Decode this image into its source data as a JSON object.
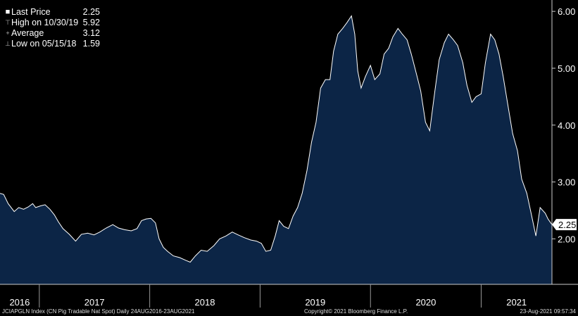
{
  "legend": [
    {
      "icon": "square-icon",
      "label": "Last Price",
      "value": "2.25"
    },
    {
      "icon": "high-marker-icon",
      "label": "High on 10/30/19",
      "value": "5.92"
    },
    {
      "icon": "average-marker-icon",
      "label": "Average",
      "value": "3.12"
    },
    {
      "icon": "low-marker-icon",
      "label": "Low on 05/15/18",
      "value": "1.59"
    }
  ],
  "footer": {
    "left": "JCIAPGLN Index (CN Pig Tradable Nat Spot)  Daily 24AUG2016-23AUG2021",
    "center": "Copyright© 2021 Bloomberg Finance L.P.",
    "right": "23-Aug-2021 09:57:34"
  },
  "colors": {
    "background": "#000000",
    "area_fill": "#0c2546",
    "line": "#ffffff",
    "grid": "#3a3a3a"
  },
  "chart_data": {
    "type": "area",
    "title": "",
    "xlabel": "",
    "ylabel": "",
    "x_range": [
      "2016-08-24",
      "2021-08-23"
    ],
    "ylim": [
      1.2,
      6.2
    ],
    "y_ticks": [
      "6.00",
      "5.00",
      "4.00",
      "3.00",
      "2.00"
    ],
    "x_ticks": [
      "2016",
      "2017",
      "2018",
      "2019",
      "2020",
      "2021"
    ],
    "last_price_label": "2.25",
    "grid": false,
    "legend_position": "top-left",
    "series": [
      {
        "x": [
          "2016-08-24",
          "2016-09-05",
          "2016-09-20",
          "2016-10-10",
          "2016-10-25",
          "2016-11-10",
          "2016-11-25",
          "2016-12-10",
          "2016-12-20",
          "2017-01-05",
          "2017-01-20",
          "2017-02-05",
          "2017-02-20",
          "2017-03-05",
          "2017-03-20",
          "2017-04-10",
          "2017-05-01",
          "2017-05-20",
          "2017-06-10",
          "2017-07-01",
          "2017-07-20",
          "2017-08-10",
          "2017-09-01",
          "2017-09-20",
          "2017-10-10",
          "2017-11-01",
          "2017-11-20",
          "2017-12-05",
          "2017-12-20",
          "2018-01-05",
          "2018-01-20",
          "2018-02-01",
          "2018-02-15",
          "2018-03-01",
          "2018-03-20",
          "2018-04-10",
          "2018-05-01",
          "2018-05-15",
          "2018-06-01",
          "2018-06-20",
          "2018-07-10",
          "2018-08-01",
          "2018-08-20",
          "2018-09-10",
          "2018-10-01",
          "2018-10-20",
          "2018-11-10",
          "2018-12-01",
          "2018-12-20",
          "2019-01-05",
          "2019-01-20",
          "2019-02-05",
          "2019-02-20",
          "2019-03-05",
          "2019-03-20",
          "2019-04-05",
          "2019-04-20",
          "2019-05-05",
          "2019-05-20",
          "2019-06-05",
          "2019-06-20",
          "2019-07-05",
          "2019-07-20",
          "2019-08-05",
          "2019-08-20",
          "2019-09-01",
          "2019-09-15",
          "2019-10-01",
          "2019-10-15",
          "2019-10-30",
          "2019-11-10",
          "2019-11-20",
          "2019-12-01",
          "2019-12-15",
          "2020-01-01",
          "2020-01-15",
          "2020-02-01",
          "2020-02-15",
          "2020-03-01",
          "2020-03-15",
          "2020-04-01",
          "2020-04-15",
          "2020-05-01",
          "2020-05-15",
          "2020-06-01",
          "2020-06-15",
          "2020-07-01",
          "2020-07-15",
          "2020-08-01",
          "2020-08-15",
          "2020-09-01",
          "2020-09-15",
          "2020-10-01",
          "2020-10-15",
          "2020-11-01",
          "2020-11-15",
          "2020-12-01",
          "2020-12-15",
          "2021-01-01",
          "2021-01-15",
          "2021-02-01",
          "2021-02-15",
          "2021-03-01",
          "2021-03-15",
          "2021-04-01",
          "2021-04-15",
          "2021-05-01",
          "2021-05-15",
          "2021-06-01",
          "2021-06-15",
          "2021-07-01",
          "2021-07-15",
          "2021-08-01",
          "2021-08-10",
          "2021-08-23"
        ],
        "values": [
          2.8,
          2.78,
          2.62,
          2.48,
          2.55,
          2.52,
          2.56,
          2.62,
          2.55,
          2.58,
          2.6,
          2.52,
          2.42,
          2.3,
          2.18,
          2.08,
          1.96,
          2.08,
          2.1,
          2.07,
          2.12,
          2.19,
          2.25,
          2.19,
          2.16,
          2.14,
          2.18,
          2.32,
          2.35,
          2.36,
          2.28,
          2.0,
          1.85,
          1.78,
          1.7,
          1.67,
          1.62,
          1.59,
          1.7,
          1.8,
          1.78,
          1.88,
          2.0,
          2.05,
          2.12,
          2.07,
          2.02,
          1.98,
          1.96,
          1.92,
          1.78,
          1.8,
          2.05,
          2.32,
          2.22,
          2.18,
          2.4,
          2.55,
          2.8,
          3.2,
          3.7,
          4.05,
          4.65,
          4.8,
          4.8,
          5.3,
          5.6,
          5.7,
          5.8,
          5.92,
          5.6,
          4.95,
          4.65,
          4.85,
          5.05,
          4.8,
          4.9,
          5.25,
          5.35,
          5.55,
          5.7,
          5.6,
          5.5,
          5.25,
          4.9,
          4.6,
          4.05,
          3.9,
          4.6,
          5.15,
          5.45,
          5.6,
          5.5,
          5.4,
          5.1,
          4.7,
          4.4,
          4.5,
          4.55,
          5.1,
          5.6,
          5.5,
          5.25,
          4.85,
          4.3,
          3.85,
          3.55,
          3.05,
          2.8,
          2.45,
          2.05,
          2.55,
          2.45,
          2.35,
          2.25
        ]
      }
    ]
  }
}
